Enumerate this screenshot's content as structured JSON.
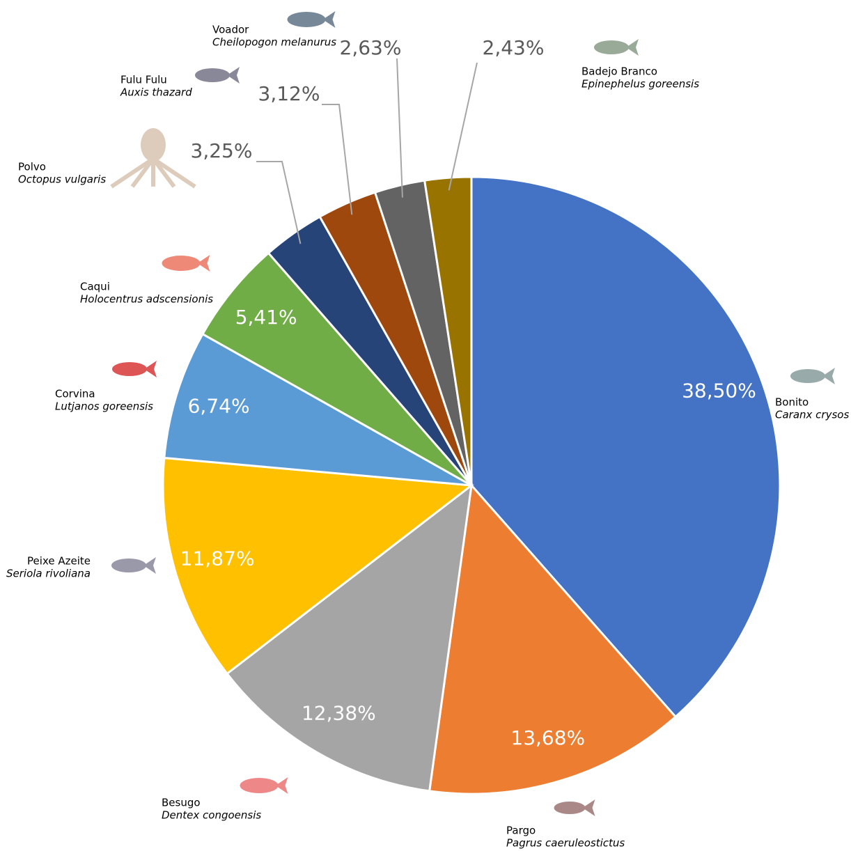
{
  "chart_data": {
    "type": "pie",
    "categories": [
      "Bonito",
      "Pargo",
      "Besugo",
      "Peixe Azeite",
      "Corvina",
      "Caqui",
      "Polvo",
      "Fulu Fulu",
      "Voador",
      "Badejo Branco"
    ],
    "scientific_names": [
      "Caranx crysos",
      "Pagrus caeruleostictus",
      "Dentex congoensis",
      "Seriola rivoliana",
      "Lutjanos goreensis",
      "Holocentrus adscensionis",
      "Octopus vulgaris",
      "Auxis thazard",
      "Cheilopogon melanurus",
      "Epinephelus goreensis"
    ],
    "values": [
      38.5,
      13.68,
      12.38,
      11.87,
      6.74,
      5.41,
      3.25,
      3.12,
      2.63,
      2.43
    ],
    "value_labels": [
      "38,50%",
      "13,68%",
      "12,38%",
      "11,87%",
      "6,74%",
      "5,41%",
      "3,25%",
      "3,12%",
      "2,63%",
      "2,43%"
    ],
    "colors": [
      "#4472c4",
      "#ed7d31",
      "#a5a5a5",
      "#ffc000",
      "#5b9bd5",
      "#70ad47",
      "#264478",
      "#9e480e",
      "#636363",
      "#997300"
    ]
  }
}
